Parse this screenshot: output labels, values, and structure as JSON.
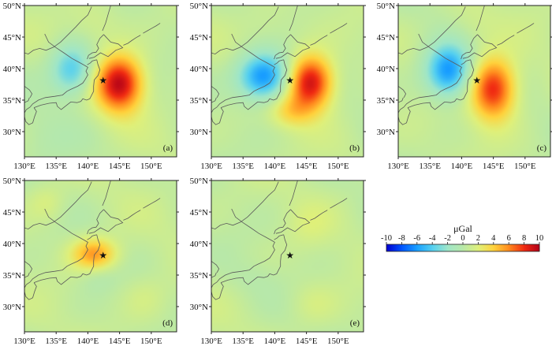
{
  "figure": {
    "panels": [
      {
        "label": "(a)",
        "anomalies": [
          {
            "lon": 137.5,
            "lat": 39.8,
            "amp": -5.0,
            "sx": 2.4,
            "sy": 2.8
          },
          {
            "lon": 145.0,
            "lat": 37.6,
            "amp": 9.0,
            "sx": 2.6,
            "sy": 3.1
          },
          {
            "lon": 141.0,
            "lat": 47.0,
            "amp": 0.9,
            "sx": 3.0,
            "sy": 2.5
          },
          {
            "lon": 133.0,
            "lat": 29.0,
            "amp": -0.6,
            "sx": 3.5,
            "sy": 3.0
          }
        ]
      },
      {
        "label": "(b)",
        "anomalies": [
          {
            "lon": 138.3,
            "lat": 38.7,
            "amp": -7.5,
            "sx": 2.9,
            "sy": 2.6
          },
          {
            "lon": 145.6,
            "lat": 37.8,
            "amp": 9.0,
            "sx": 2.5,
            "sy": 3.0
          },
          {
            "lon": 142.5,
            "lat": 33.2,
            "amp": 2.6,
            "sx": 2.4,
            "sy": 1.8
          },
          {
            "lon": 139.0,
            "lat": 46.5,
            "amp": 0.7,
            "sx": 3.0,
            "sy": 2.5
          }
        ]
      },
      {
        "label": "(c)",
        "anomalies": [
          {
            "lon": 137.9,
            "lat": 39.6,
            "amp": -7.0,
            "sx": 2.5,
            "sy": 2.9
          },
          {
            "lon": 145.0,
            "lat": 36.8,
            "amp": 8.0,
            "sx": 2.5,
            "sy": 3.4
          },
          {
            "lon": 141.5,
            "lat": 47.0,
            "amp": 0.7,
            "sx": 3.0,
            "sy": 2.5
          }
        ]
      },
      {
        "label": "(d)",
        "anomalies": [
          {
            "lon": 141.0,
            "lat": 38.3,
            "amp": 5.0,
            "sx": 2.5,
            "sy": 1.8
          },
          {
            "lon": 141.5,
            "lat": 34.8,
            "amp": -0.8,
            "sx": 2.2,
            "sy": 1.8
          },
          {
            "lon": 133.5,
            "lat": 46.5,
            "amp": 1.2,
            "sx": 2.0,
            "sy": 2.0
          },
          {
            "lon": 149.0,
            "lat": 31.5,
            "amp": 0.8,
            "sx": 2.5,
            "sy": 2.5
          }
        ]
      },
      {
        "label": "(e)",
        "anomalies": [
          {
            "lon": 145.5,
            "lat": 43.0,
            "amp": 0.8,
            "sx": 2.5,
            "sy": 2.5
          },
          {
            "lon": 146.0,
            "lat": 30.5,
            "amp": 0.9,
            "sx": 2.6,
            "sy": 2.4
          },
          {
            "lon": 136.5,
            "lat": 34.5,
            "amp": -0.5,
            "sx": 3.0,
            "sy": 2.0
          }
        ]
      }
    ],
    "lon_ticks": [
      "130°E",
      "135°E",
      "140°E",
      "145°E",
      "150°E"
    ],
    "lat_ticks": [
      "30°N",
      "35°N",
      "40°N",
      "45°N",
      "50°N"
    ],
    "lon_range": [
      130,
      154
    ],
    "lat_range": [
      26,
      50
    ],
    "epicenter": {
      "lon": 142.4,
      "lat": 38.1,
      "symbol": "★"
    },
    "colorbar": {
      "unit": "μGal",
      "ticks": [
        "-10",
        "-8",
        "-6",
        "-4",
        "-2",
        "0",
        "2",
        "4",
        "6",
        "8",
        "10"
      ],
      "range": [
        -10,
        10
      ],
      "colors": [
        "#0000d0",
        "#0055ff",
        "#1aa0ff",
        "#55d0f0",
        "#9fe6c8",
        "#b8e8a8",
        "#dff07a",
        "#ffd23c",
        "#ff8a1e",
        "#f02a12",
        "#b00018"
      ]
    }
  }
}
